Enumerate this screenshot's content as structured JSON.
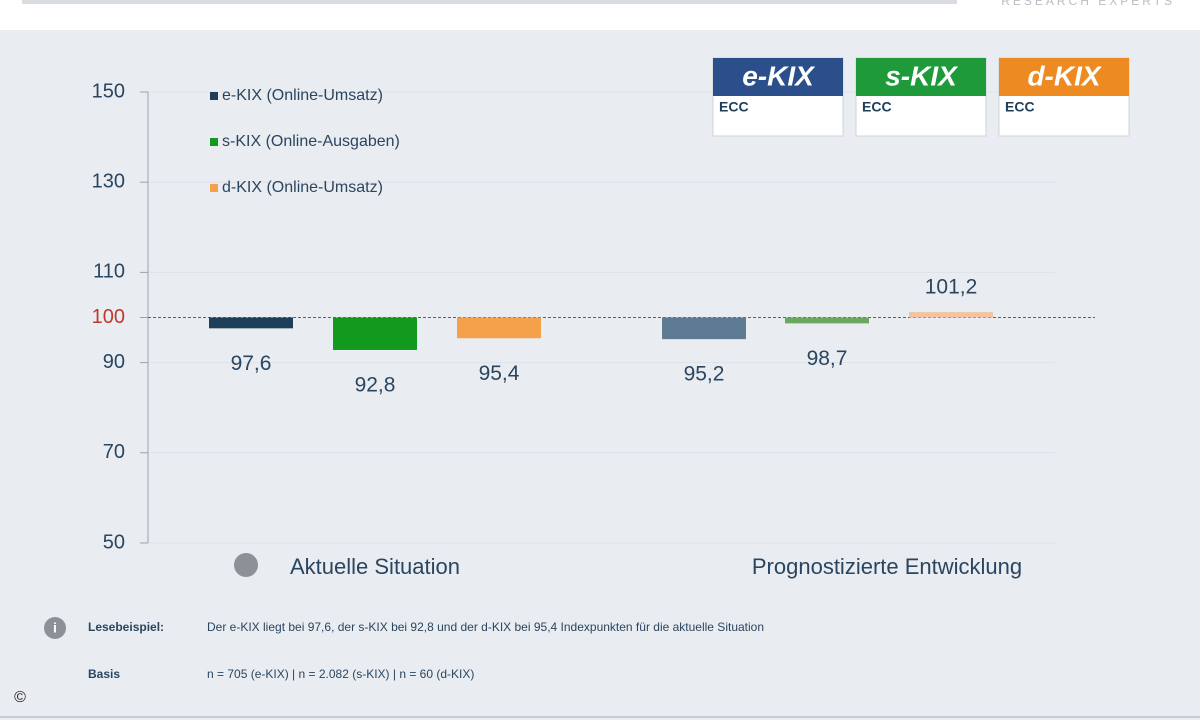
{
  "header": {
    "brand": "RESEARCH EXPERTS"
  },
  "logos": [
    {
      "title": "e-KIX",
      "sub": "ECC",
      "color": "#2a4f8a"
    },
    {
      "title": "s-KIX",
      "sub": "ECC",
      "color": "#1e9a3a"
    },
    {
      "title": "d-KIX",
      "sub": "ECC",
      "color": "#ee8a22"
    }
  ],
  "chart_data": {
    "type": "bar",
    "categories": [
      "Aktuelle Situation",
      "Prognostizierte Entwicklung"
    ],
    "series": [
      {
        "name": "e-KIX (Online-Umsatz)",
        "color": "#1e3f5a",
        "colors": [
          "#1e3f5a",
          "#5f7b93"
        ],
        "values": [
          97.6,
          95.2
        ],
        "value_labels": [
          "97,6",
          "95,2"
        ]
      },
      {
        "name": "s-KIX (Online-Ausgaben)",
        "color": "#129a1f",
        "colors": [
          "#129a1f",
          "#6aa860"
        ],
        "values": [
          92.8,
          98.7
        ],
        "value_labels": [
          "92,8",
          "98,7"
        ]
      },
      {
        "name": "d-KIX (Online-Umsatz)",
        "color": "#f5a04a",
        "colors": [
          "#f5a04a",
          "#f4c4a0"
        ],
        "values": [
          95.4,
          101.2
        ],
        "value_labels": [
          "95,4",
          "101,2"
        ]
      }
    ],
    "ylim": [
      50,
      150
    ],
    "yticks": [
      50,
      70,
      90,
      100,
      110,
      130,
      150
    ],
    "baseline": 100,
    "baseline_color": "#c0392b",
    "grid": true
  },
  "footer": {
    "example_label": "Lesebeispiel:",
    "example_text": "Der e-KIX liegt bei 97,6, der s-KIX bei 92,8 und der d-KIX bei 95,4 Indexpunkten für die aktuelle Situation",
    "basis_label": "Basis",
    "basis_text": "n = 705  (e-KIX)   |  n = 2.082  (s-KIX)   |  n = 60  (d-KIX)",
    "copyright": "©"
  }
}
